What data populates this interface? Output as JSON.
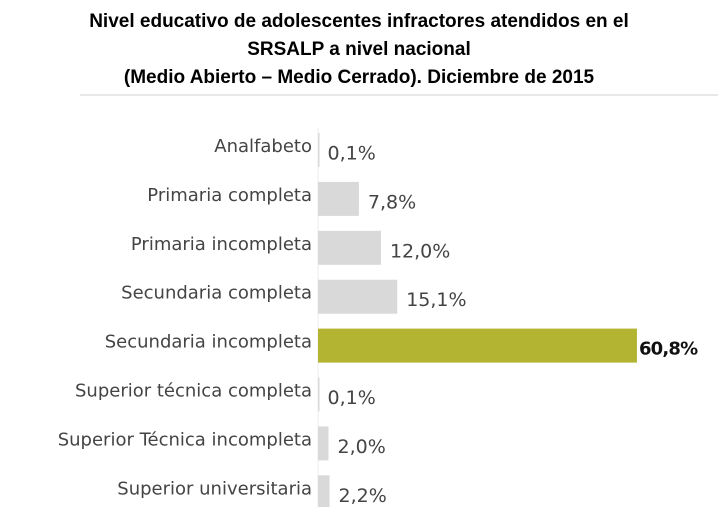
{
  "chart_data": {
    "type": "bar",
    "orientation": "horizontal",
    "title": [
      "Nivel educativo de adolescentes infractores atendidos en el",
      "SRSALP a nivel nacional",
      "(Medio Abierto – Medio Cerrado). Diciembre de 2015"
    ],
    "categories": [
      "Analfabeto",
      "Primaria completa",
      "Primaria incompleta",
      "Secundaria completa",
      "Secundaria incompleta",
      "Superior técnica completa",
      "Superior Técnica incompleta",
      "Superior universitaria"
    ],
    "values": [
      0.1,
      7.8,
      12.0,
      15.1,
      60.8,
      0.1,
      2.0,
      2.2
    ],
    "value_labels": [
      "0,1%",
      "7,8%",
      "12,0%",
      "15,1%",
      "60,8%",
      "0,1%",
      "2,0%",
      "2,2%"
    ],
    "colors": [
      "#d9d9d9",
      "#d9d9d9",
      "#d9d9d9",
      "#d9d9d9",
      "#b3b432",
      "#d9d9d9",
      "#d9d9d9",
      "#d9d9d9"
    ],
    "highlight_color": "#b3b432",
    "xlim": [
      0,
      61
    ]
  }
}
